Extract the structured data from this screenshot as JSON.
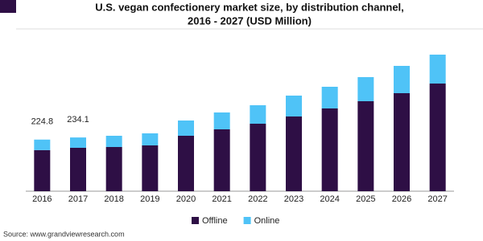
{
  "chart_data": {
    "type": "stacked_bar",
    "title": [
      "U.S. vegan confectionery market size, by distribution channel,",
      "2016 - 2027 (USD Million)"
    ],
    "categories": [
      "2016",
      "2017",
      "2018",
      "2019",
      "2020",
      "2021",
      "2022",
      "2023",
      "2024",
      "2025",
      "2026",
      "2027"
    ],
    "series": [
      {
        "name": "Offline",
        "color": "#2e0f45",
        "values": [
          179.0,
          189.0,
          192.5,
          199.5,
          241.5,
          269.5,
          294.0,
          325.5,
          360.5,
          392.0,
          427.0,
          469.0
        ]
      },
      {
        "name": "Online",
        "color": "#4fc3f7",
        "values": [
          45.8,
          45.1,
          49.0,
          52.5,
          66.5,
          73.5,
          80.5,
          91.0,
          94.5,
          105.0,
          119.0,
          126.0
        ]
      }
    ],
    "total_labels": [
      224.8,
      234.1,
      null,
      null,
      null,
      null,
      null,
      null,
      null,
      null,
      null,
      null
    ],
    "source": "Source: www.grandviewresearch.com"
  }
}
